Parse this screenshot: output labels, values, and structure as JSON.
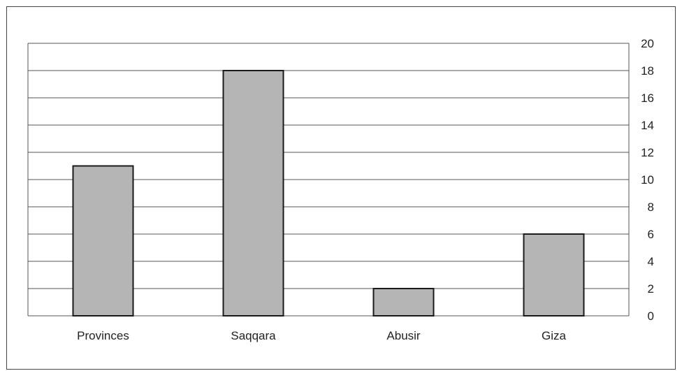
{
  "chart_data": {
    "type": "bar",
    "categories": [
      "Provinces",
      "Saqqara",
      "Abusir",
      "Giza"
    ],
    "values": [
      11,
      18,
      2,
      6
    ],
    "title": "",
    "xlabel": "",
    "ylabel": "",
    "ylim": [
      0,
      20
    ],
    "yticks": [
      "0",
      "2",
      "4",
      "6",
      "8",
      "10",
      "12",
      "14",
      "16",
      "18",
      "20"
    ],
    "grid": true,
    "y_axis_side": "right",
    "legend": "none",
    "colors": {
      "bar_fill": "#b5b5b5",
      "bar_stroke": "#1a1a1a",
      "grid": "#555555"
    }
  }
}
